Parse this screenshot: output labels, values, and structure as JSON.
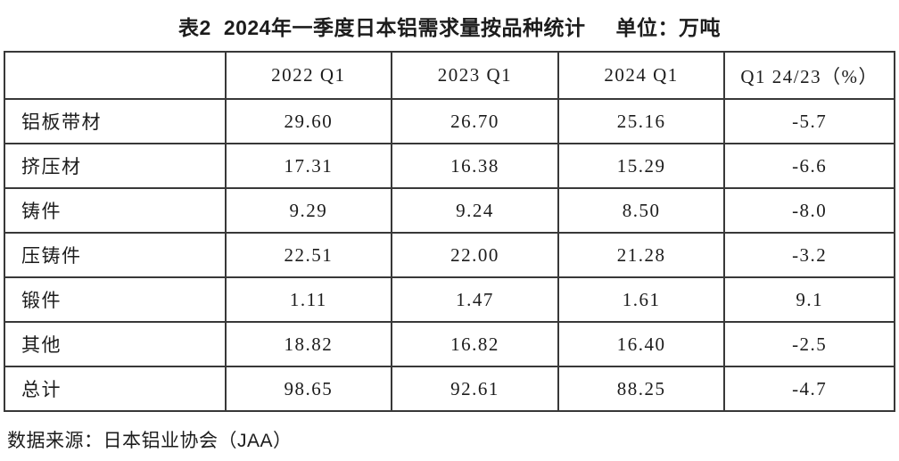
{
  "colors": {
    "text": "#1c1c1c",
    "table_border": "#383838",
    "background": "#ffffff"
  },
  "title": {
    "label": "表2",
    "text": "2024年一季度日本铝需求量按品种统计",
    "unit": "单位：万吨"
  },
  "table": {
    "columns": [
      "",
      "2022 Q1",
      "2023 Q1",
      "2024 Q1",
      "Q1 24/23（%）"
    ],
    "rows": [
      {
        "label": "铝板带材",
        "values": [
          "29.60",
          "26.70",
          "25.16",
          "-5.7"
        ]
      },
      {
        "label": "挤压材",
        "values": [
          "17.31",
          "16.38",
          "15.29",
          "-6.6"
        ]
      },
      {
        "label": "铸件",
        "values": [
          "9.29",
          "9.24",
          "8.50",
          "-8.0"
        ]
      },
      {
        "label": "压铸件",
        "values": [
          "22.51",
          "22.00",
          "21.28",
          "-3.2"
        ]
      },
      {
        "label": "锻件",
        "values": [
          "1.11",
          "1.47",
          "1.61",
          "9.1"
        ]
      },
      {
        "label": "其他",
        "values": [
          "18.82",
          "16.82",
          "16.40",
          "-2.5"
        ]
      },
      {
        "label": "总计",
        "values": [
          "98.65",
          "92.61",
          "88.25",
          "-4.7"
        ]
      }
    ]
  },
  "footer": {
    "source": "数据来源：日本铝业协会（JAA）"
  },
  "chart_data": {
    "type": "table",
    "title": "表2 2024年一季度日本铝需求量按品种统计",
    "unit": "万吨",
    "categories": [
      "铝板带材",
      "挤压材",
      "铸件",
      "压铸件",
      "锻件",
      "其他",
      "总计"
    ],
    "series": [
      {
        "name": "2022 Q1",
        "values": [
          29.6,
          17.31,
          9.29,
          22.51,
          1.11,
          18.82,
          98.65
        ]
      },
      {
        "name": "2023 Q1",
        "values": [
          26.7,
          16.38,
          9.24,
          22.0,
          1.47,
          16.82,
          92.61
        ]
      },
      {
        "name": "2024 Q1",
        "values": [
          25.16,
          15.29,
          8.5,
          21.28,
          1.61,
          16.4,
          88.25
        ]
      },
      {
        "name": "Q1 24/23 (%)",
        "values": [
          -5.7,
          -6.6,
          -8.0,
          -3.2,
          9.1,
          -2.5,
          -4.7
        ]
      }
    ],
    "source": "日本铝业协会（JAA）"
  }
}
